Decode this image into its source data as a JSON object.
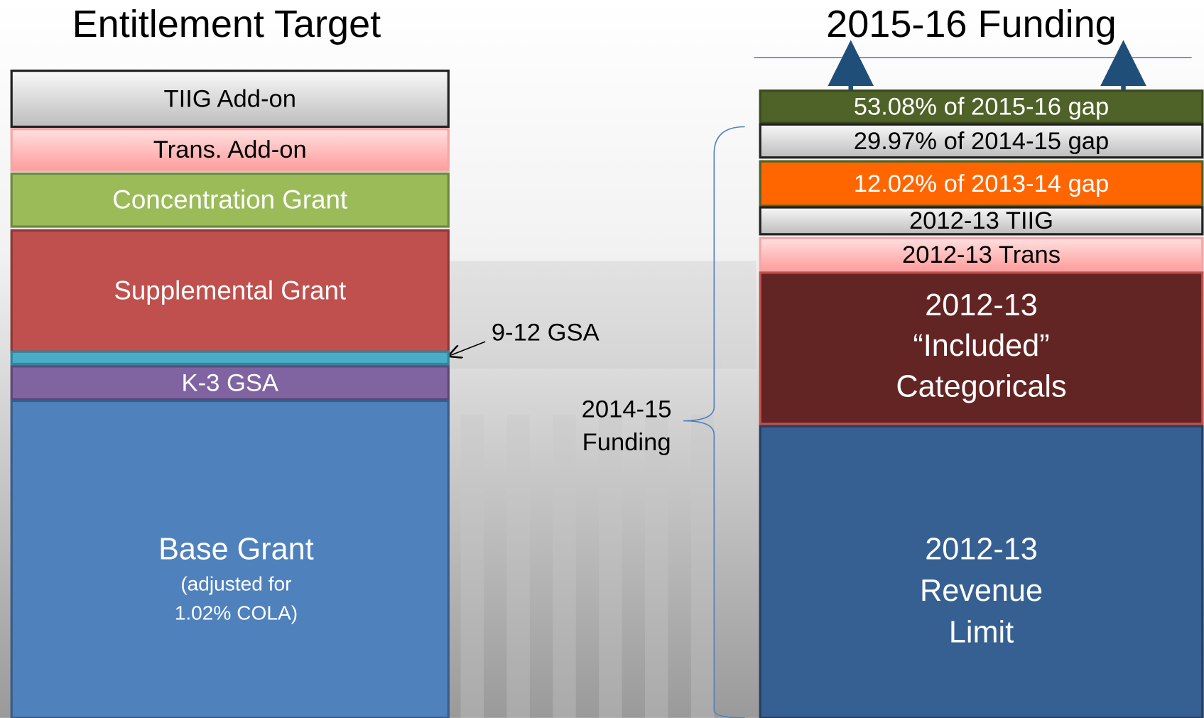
{
  "left_column": {
    "title": "Entitlement Target",
    "blocks": [
      {
        "lines": [
          "TIIG Add-on"
        ]
      },
      {
        "lines": [
          "Trans. Add-on"
        ]
      },
      {
        "lines": [
          "Concentration  Grant"
        ]
      },
      {
        "lines": [
          "Supplemental  Grant"
        ]
      },
      {
        "lines": []
      },
      {
        "lines": [
          "K-3 GSA"
        ]
      },
      {
        "lines": [
          "Base Grant",
          "(adjusted for",
          "1.02% COLA)"
        ]
      }
    ],
    "annotation": "9-12 GSA"
  },
  "right_column": {
    "title": "2015-16 Funding",
    "blocks": [
      {
        "lines": [
          "53.08% of 2015-16 gap"
        ]
      },
      {
        "lines": [
          "29.97% of 2014-15 gap"
        ]
      },
      {
        "lines": [
          "12.02% of 2013-14 gap"
        ]
      },
      {
        "lines": [
          "2012-13 TIIG"
        ]
      },
      {
        "lines": [
          "2012-13 Trans"
        ]
      },
      {
        "lines": [
          "2012-13",
          "“Included”",
          "Categoricals"
        ]
      },
      {
        "lines": [
          "2012-13",
          "Revenue",
          "Limit"
        ]
      }
    ],
    "brace_label": [
      "2014-15",
      "Funding"
    ]
  }
}
